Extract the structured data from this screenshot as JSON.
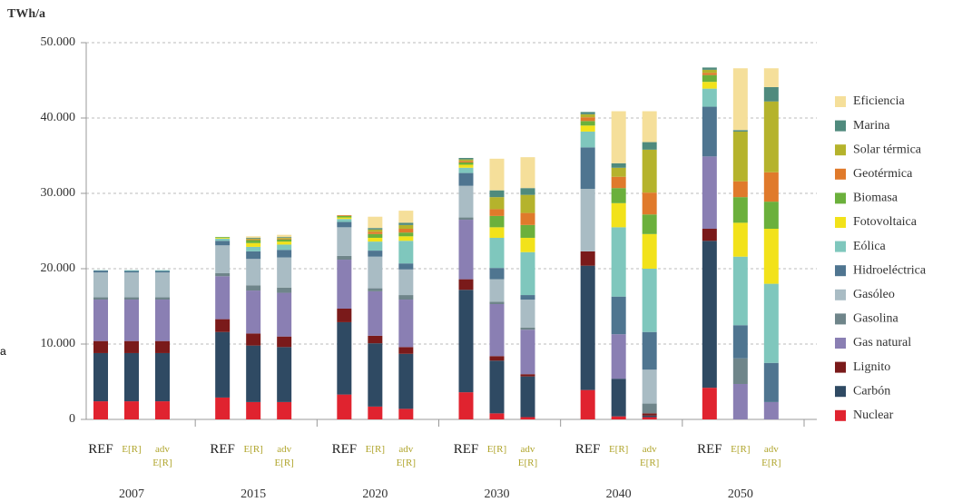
{
  "chart_data": {
    "type": "stacked-bar",
    "y_label": "TWh/a",
    "annotation": "a",
    "groups": [
      "2007",
      "2015",
      "2020",
      "2030",
      "2040",
      "2050"
    ],
    "categories": [
      "REF",
      "E[R]",
      "adv E[R]",
      "REF",
      "E[R]",
      "adv E[R]",
      "REF",
      "E[R]",
      "adv E[R]",
      "REF",
      "E[R]",
      "adv E[R]",
      "REF",
      "E[R]",
      "adv E[R]",
      "REF",
      "E[R]",
      "adv E[R]"
    ],
    "ylim": [
      0,
      50000
    ],
    "yticks": [
      0,
      {
        "value": 10000,
        "label": "10.000"
      },
      {
        "value": 20000,
        "label": "20.000"
      },
      {
        "value": 30000,
        "label": "30.000"
      },
      {
        "value": 40000,
        "label": "40.000"
      },
      {
        "value": 50000,
        "label": "50.000"
      }
    ],
    "grid": true,
    "legend": "right",
    "series": [
      {
        "name": "Nuclear",
        "color": "#e0232f",
        "values": [
          2400,
          2400,
          2400,
          2900,
          2300,
          2300,
          3300,
          1700,
          1400,
          3600,
          800,
          300,
          3900,
          400,
          300,
          4200,
          0,
          0
        ]
      },
      {
        "name": "Carbón",
        "color": "#2f4a63",
        "values": [
          6400,
          6400,
          6400,
          8700,
          7500,
          7300,
          9600,
          8400,
          7300,
          13600,
          7000,
          5400,
          16500,
          5000,
          200,
          19500,
          0,
          0
        ]
      },
      {
        "name": "Lignito",
        "color": "#7a1a1a",
        "values": [
          1600,
          1600,
          1600,
          1700,
          1600,
          1400,
          1800,
          1000,
          900,
          1400,
          600,
          300,
          1900,
          0,
          300,
          1600,
          0,
          0
        ]
      },
      {
        "name": "Gas natural",
        "color": "#8a7fb3",
        "values": [
          5500,
          5500,
          5500,
          5700,
          5700,
          5800,
          6500,
          5900,
          6300,
          7900,
          6900,
          5900,
          0,
          5900,
          0,
          9600,
          4700,
          2300
        ]
      },
      {
        "name": "Gasolina",
        "color": "#6f858a",
        "values": [
          300,
          300,
          300,
          400,
          700,
          700,
          500,
          400,
          600,
          300,
          300,
          300,
          0,
          0,
          1300,
          0,
          3400,
          0
        ]
      },
      {
        "name": "Gasóleo",
        "color": "#a9bcc4",
        "values": [
          3300,
          3300,
          3300,
          3700,
          3500,
          4000,
          3800,
          4200,
          3400,
          4200,
          3000,
          3700,
          8300,
          0,
          4500,
          0,
          0,
          0
        ]
      },
      {
        "name": "Hidroeléctrica",
        "color": "#4f7590",
        "values": [
          250,
          200,
          200,
          600,
          1000,
          1000,
          700,
          800,
          800,
          1700,
          1500,
          600,
          5500,
          5000,
          5000,
          6600,
          4400,
          5200
        ]
      },
      {
        "name": "Eólica",
        "color": "#7fc7bd",
        "values": [
          50,
          100,
          100,
          300,
          600,
          700,
          400,
          1200,
          3000,
          700,
          4000,
          5700,
          2100,
          9200,
          8400,
          2400,
          9100,
          10500
        ]
      },
      {
        "name": "Fotovoltaica",
        "color": "#f2e21a",
        "values": [
          0,
          0,
          0,
          100,
          500,
          400,
          200,
          500,
          600,
          400,
          1400,
          1900,
          800,
          3200,
          4600,
          900,
          4500,
          7300
        ]
      },
      {
        "name": "Biomasa",
        "color": "#6bb03c",
        "values": [
          0,
          0,
          0,
          100,
          400,
          300,
          200,
          500,
          500,
          300,
          1500,
          1700,
          600,
          2000,
          2600,
          900,
          3400,
          3600
        ]
      },
      {
        "name": "Geotérmica",
        "color": "#e07a2b",
        "values": [
          0,
          0,
          0,
          0,
          100,
          100,
          100,
          300,
          500,
          200,
          900,
          1600,
          500,
          1500,
          2900,
          300,
          2100,
          3900
        ]
      },
      {
        "name": "Solar térmica",
        "color": "#b5b32c",
        "values": [
          0,
          0,
          0,
          0,
          100,
          100,
          0,
          300,
          500,
          200,
          1600,
          2400,
          400,
          1200,
          5700,
          400,
          6600,
          9400
        ]
      },
      {
        "name": "Marina",
        "color": "#4f8a7d",
        "values": [
          0,
          0,
          0,
          0,
          100,
          100,
          0,
          200,
          300,
          200,
          900,
          900,
          300,
          600,
          1000,
          300,
          200,
          1900
        ]
      },
      {
        "name": "Eficiencia",
        "color": "#f5df9a",
        "values": [
          0,
          0,
          0,
          0,
          200,
          300,
          0,
          1500,
          1600,
          0,
          4200,
          4100,
          0,
          6900,
          4100,
          0,
          8200,
          2500
        ]
      }
    ]
  }
}
